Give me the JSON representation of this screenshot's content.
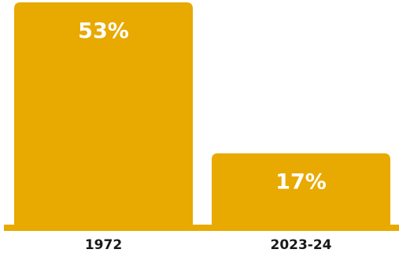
{
  "chart_data": {
    "type": "bar",
    "categories": [
      "1972",
      "2023-24"
    ],
    "values": [
      53,
      17
    ],
    "value_labels": [
      "53%",
      "17%"
    ],
    "unit": "%",
    "bar_color": "#e8a900",
    "ylim": [
      0,
      53
    ],
    "grid": false,
    "legend": "none"
  }
}
